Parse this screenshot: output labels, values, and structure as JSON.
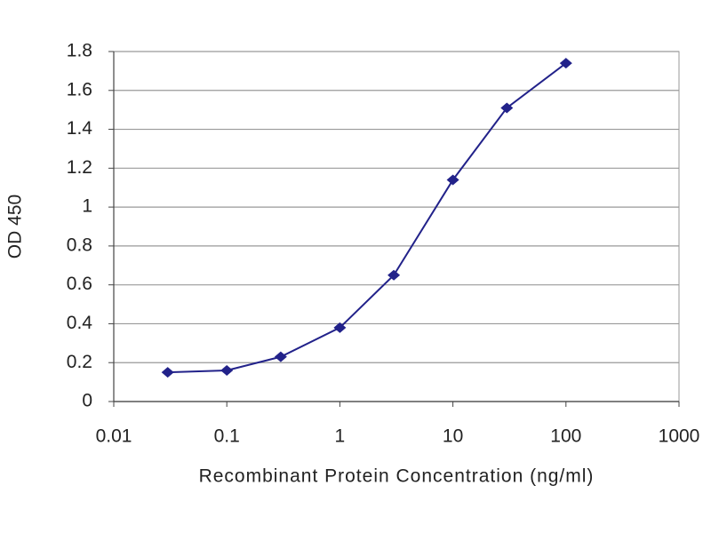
{
  "chart_data": {
    "type": "line",
    "xscale": "log",
    "grid": true,
    "xlabel": "Recombinant Protein Concentration (ng/ml)",
    "ylabel": "OD 450",
    "x": [
      0.03,
      0.1,
      0.3,
      1,
      3,
      10,
      30,
      100
    ],
    "series": [
      {
        "color": "#22228a",
        "values": [
          0.15,
          0.16,
          0.23,
          0.38,
          0.65,
          1.14,
          1.51,
          1.74
        ]
      }
    ],
    "xlim": [
      0.01,
      1000
    ],
    "xticks": [
      0.01,
      0.1,
      1,
      10,
      100,
      1000
    ],
    "ylim": [
      0,
      1.8
    ],
    "yticks": [
      0,
      0.2,
      0.4,
      0.6,
      0.8,
      1,
      1.2,
      1.4,
      1.6,
      1.8
    ]
  }
}
